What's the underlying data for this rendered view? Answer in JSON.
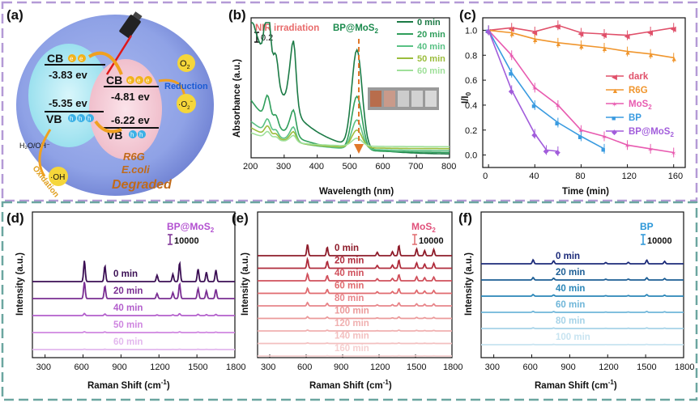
{
  "panels": {
    "a": "(a)",
    "b": "(b)",
    "c": "(c)",
    "d": "(d)",
    "e": "(e)",
    "f": "(f)"
  },
  "panel_a": {
    "cb": "CB",
    "vb": "VB",
    "bp_cb": "-3.83 ev",
    "bp_vb": "-5.35 ev",
    "mos2_cb": "-4.81 ev",
    "mos2_vb": "-6.22 ev",
    "o2": "O",
    "o2_sub": "2",
    "reduction": "Reduction",
    "superoxide": "·O",
    "superoxide_sub": "2",
    "superoxide_sup": "−",
    "h2o": "H₂O/OH⁻",
    "oxidation": "Oxidation",
    "oh": "·OH",
    "r6g": "R6G",
    "ecoli": "E.coli",
    "degraded": "Degraded",
    "electron": "e",
    "hole": "h"
  },
  "chart_data": [
    {
      "panel": "b",
      "type": "line",
      "title": "NIR irradiation",
      "legend_title": "BP@MoS",
      "legend_title_sub": "2",
      "xlabel": "Wavelength (nm)",
      "ylabel": "Absorbance (a.u.)",
      "xlim": [
        200,
        800
      ],
      "xticks": [
        "200",
        "300",
        "400",
        "500",
        "600",
        "700",
        "800"
      ],
      "scale_bar": "0.2",
      "series": [
        {
          "name": "0 min",
          "color": "#1b7a45",
          "offset": 1.2,
          "peak": 1.0
        },
        {
          "name": "20 min",
          "color": "#2f9e5b",
          "offset": 0.45,
          "peak": 0.55
        },
        {
          "name": "40 min",
          "color": "#59c184",
          "offset": 0.25,
          "peak": 0.3
        },
        {
          "name": "50 min",
          "color": "#9bbd3c",
          "offset": 0.18,
          "peak": 0.18
        },
        {
          "name": "60 min",
          "color": "#9fe09a",
          "offset": 0.12,
          "peak": 0.08
        }
      ]
    },
    {
      "panel": "c",
      "type": "line",
      "xlabel": "Time (min)",
      "ylabel": "I/I",
      "ylabel_sub": "0",
      "xlim": [
        -5,
        170
      ],
      "ylim": [
        -0.1,
        1.1
      ],
      "xticks": [
        "0",
        "40",
        "80",
        "120",
        "160"
      ],
      "yticks": [
        "0.0",
        "0.2",
        "0.4",
        "0.6",
        "0.8",
        "1.0"
      ],
      "series": [
        {
          "name": "dark",
          "name_sub": "",
          "color": "#e0506a",
          "marker": "◀",
          "x": [
            0,
            20,
            40,
            60,
            80,
            100,
            120,
            140,
            160
          ],
          "y": [
            1.0,
            1.02,
            0.99,
            1.04,
            0.98,
            0.97,
            0.96,
            0.99,
            1.02
          ]
        },
        {
          "name": "R6G",
          "name_sub": "",
          "color": "#f0962e",
          "marker": "▲",
          "x": [
            0,
            20,
            40,
            60,
            80,
            100,
            120,
            140,
            160
          ],
          "y": [
            1.0,
            0.98,
            0.93,
            0.9,
            0.88,
            0.86,
            0.83,
            0.81,
            0.78
          ]
        },
        {
          "name": "MoS",
          "name_sub": "2",
          "color": "#e85bb0",
          "marker": "✶",
          "x": [
            0,
            20,
            40,
            60,
            80,
            100,
            120,
            140,
            160
          ],
          "y": [
            1.0,
            0.8,
            0.54,
            0.4,
            0.2,
            0.15,
            0.08,
            0.05,
            0.02
          ]
        },
        {
          "name": "BP",
          "name_sub": "",
          "color": "#3a9be0",
          "marker": "■",
          "x": [
            0,
            20,
            40,
            60,
            80,
            100
          ],
          "y": [
            1.0,
            0.66,
            0.4,
            0.26,
            0.15,
            0.05
          ]
        },
        {
          "name": "BP@MoS",
          "name_sub": "2",
          "color": "#a25ddb",
          "marker": "◆",
          "x": [
            0,
            20,
            40,
            50,
            60
          ],
          "y": [
            1.0,
            0.52,
            0.17,
            0.04,
            0.03
          ]
        }
      ]
    },
    {
      "panel": "d",
      "type": "spectra",
      "title": "BP@MoS",
      "title_sub": "2",
      "scale_bar": "10000",
      "xlabel": "Raman Shift (cm",
      "xlabel_sup": "-1",
      "xlabel_end": ")",
      "ylabel": "Intensity (a.u.)",
      "xlim": [
        200,
        1800
      ],
      "xticks": [
        "300",
        "600",
        "900",
        "1200",
        "1500",
        "1800"
      ],
      "peaks_cm": [
        611,
        773,
        1185,
        1310,
        1363,
        1509,
        1575,
        1650
      ],
      "series": [
        {
          "name": "0 min",
          "color": "#3b0f54",
          "amp": 1.0
        },
        {
          "name": "20 min",
          "color": "#7a2e93",
          "amp": 0.8
        },
        {
          "name": "40 min",
          "color": "#b35fcc",
          "amp": 0.1
        },
        {
          "name": "50 min",
          "color": "#cf86e0",
          "amp": 0.04
        },
        {
          "name": "60 min",
          "color": "#e3b8ee",
          "amp": 0.02
        }
      ]
    },
    {
      "panel": "e",
      "type": "spectra",
      "title": "MoS",
      "title_sub": "2",
      "scale_bar": "10000",
      "xlabel": "Raman Shift (cm",
      "xlabel_sup": "-1",
      "xlabel_end": ")",
      "ylabel": "Intensity (a.u.)",
      "xlim": [
        200,
        1800
      ],
      "xticks": [
        "300",
        "600",
        "900",
        "1200",
        "1500",
        "1800"
      ],
      "peaks_cm": [
        611,
        773,
        1185,
        1310,
        1363,
        1509,
        1575,
        1650
      ],
      "series": [
        {
          "name": "0 min",
          "color": "#8e1c2a",
          "amp": 1.0
        },
        {
          "name": "20 min",
          "color": "#b02c3c",
          "amp": 0.8
        },
        {
          "name": "40 min",
          "color": "#d0505c",
          "amp": 0.6
        },
        {
          "name": "60 min",
          "color": "#e06a6e",
          "amp": 0.45
        },
        {
          "name": "80 min",
          "color": "#e8858a",
          "amp": 0.3
        },
        {
          "name": "100 min",
          "color": "#eb9a9a",
          "amp": 0.15
        },
        {
          "name": "120 min",
          "color": "#f0b0b0",
          "amp": 0.08
        },
        {
          "name": "140 min",
          "color": "#f3c0c0",
          "amp": 0.05
        },
        {
          "name": "160 min",
          "color": "#f6d0d0",
          "amp": 0.03
        }
      ]
    },
    {
      "panel": "f",
      "type": "spectra",
      "title": "BP",
      "title_sub": "",
      "scale_bar": "10000",
      "xlabel": "Raman Shift (cm",
      "xlabel_sup": "-1",
      "xlabel_end": ")",
      "ylabel": "Intensity (a.u.)",
      "xlim": [
        200,
        1800
      ],
      "xticks": [
        "300",
        "600",
        "900",
        "1200",
        "1500",
        "1800"
      ],
      "peaks_cm": [
        611,
        773,
        1185,
        1363,
        1509,
        1650
      ],
      "series": [
        {
          "name": "0 min",
          "color": "#1c2b7a",
          "amp": 0.5
        },
        {
          "name": "20 min",
          "color": "#1d5e95",
          "amp": 0.3
        },
        {
          "name": "40 min",
          "color": "#2a86b8",
          "amp": 0.2
        },
        {
          "name": "60 min",
          "color": "#6fb6d9",
          "amp": 0.12
        },
        {
          "name": "80 min",
          "color": "#a6d3e8",
          "amp": 0.08
        },
        {
          "name": "100 min",
          "color": "#c8e4f1",
          "amp": 0.05
        }
      ]
    }
  ]
}
